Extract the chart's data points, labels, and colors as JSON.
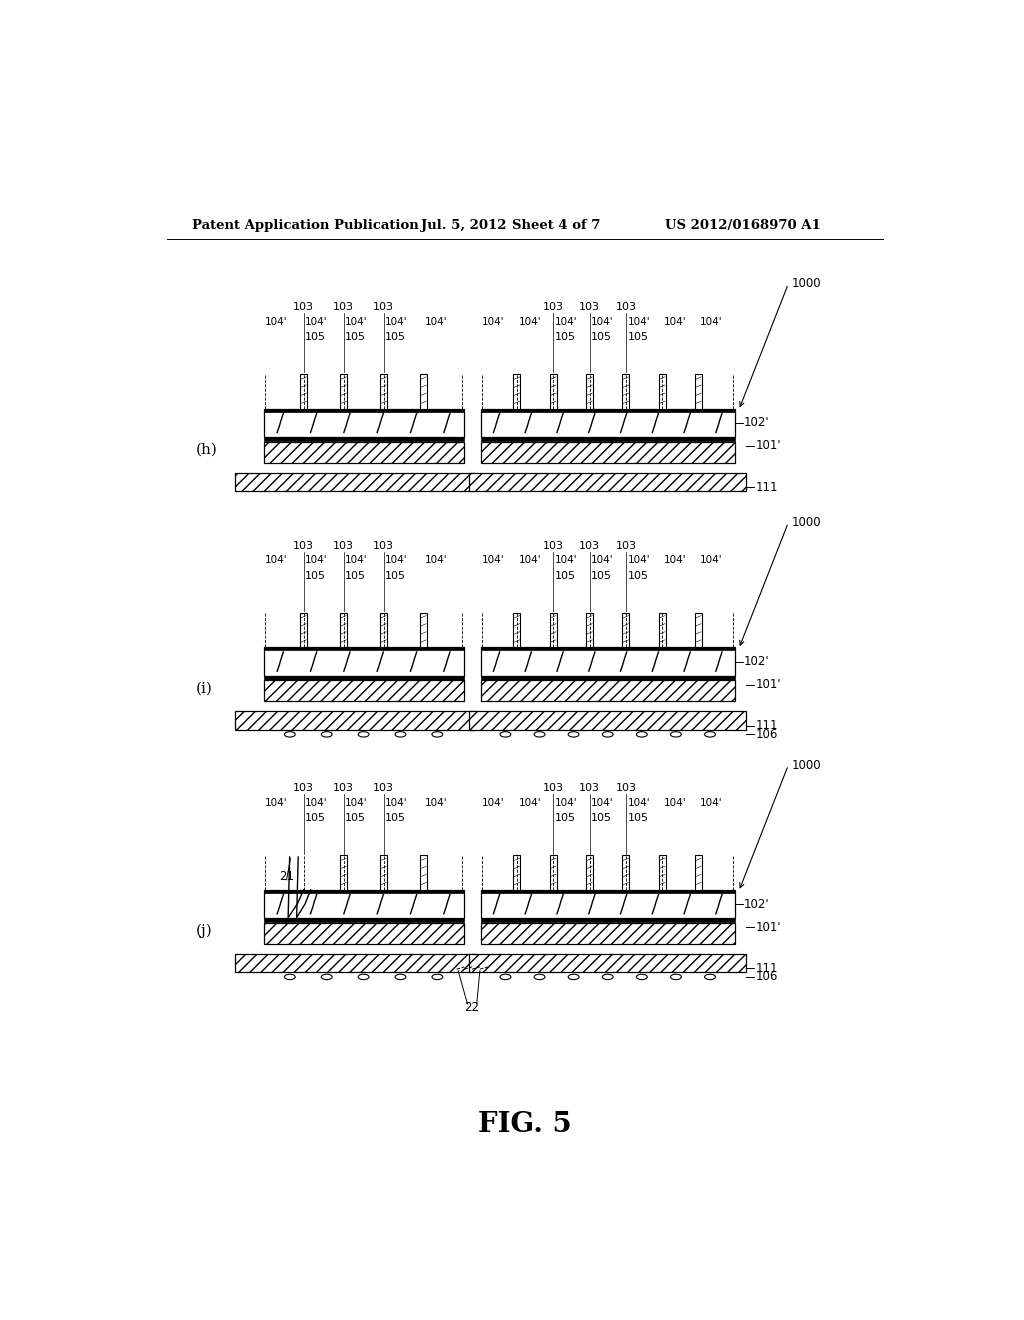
{
  "bg_color": "#ffffff",
  "header_text": "Patent Application Publication",
  "header_date": "Jul. 5, 2012",
  "header_sheet": "Sheet 4 of 7",
  "header_patent": "US 2012/0168970 A1",
  "fig_label": "FIG. 5",
  "panel_h_label": "(h)",
  "panel_i_label": "(i)",
  "panel_j_label": "(j)",
  "label_103": "103",
  "label_104": "104'",
  "label_105": "105",
  "label_102": "102'",
  "label_101": "101'",
  "label_111": "111",
  "label_1000": "1000",
  "label_106": "106",
  "label_21": "21",
  "label_22": "22"
}
